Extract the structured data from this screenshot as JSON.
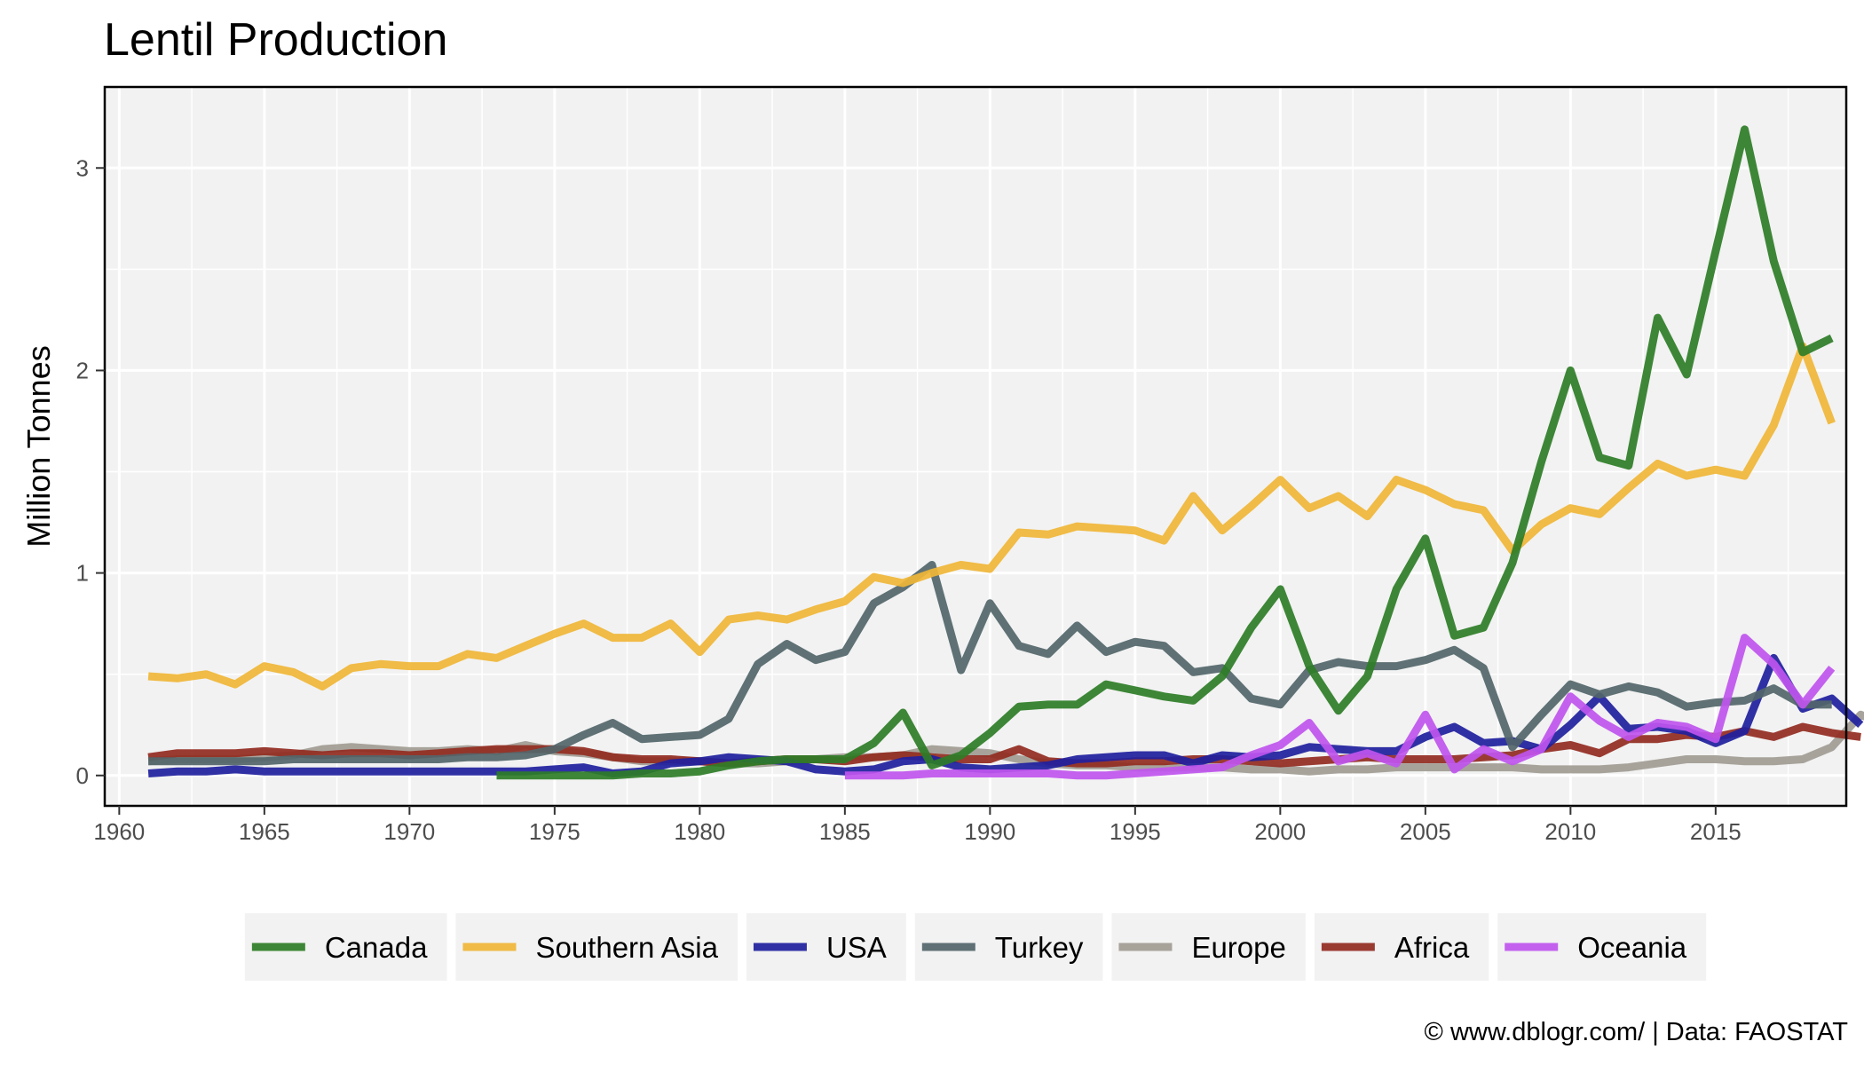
{
  "chart_data": {
    "type": "line",
    "title": "Lentil Production",
    "ylabel": "Million Tonnes",
    "xlabel": "",
    "caption": "© www.dblogr.com/  |  Data: FAOSTAT",
    "xlim": [
      1959.5,
      2019.5
    ],
    "ylim": [
      -0.15,
      3.4
    ],
    "xticks": [
      1960,
      1965,
      1970,
      1975,
      1980,
      1985,
      1990,
      1995,
      2000,
      2005,
      2010,
      2015
    ],
    "xtick_labels": [
      "1960",
      "1965",
      "1970",
      "1975",
      "1980",
      "1985",
      "1990",
      "1995",
      "2000",
      "2005",
      "2010",
      "2015"
    ],
    "yticks": [
      0,
      1,
      2,
      3
    ],
    "ytick_labels": [
      "0",
      "1",
      "2",
      "3"
    ],
    "grid": true,
    "legend_position": "bottom",
    "plot_background": "#f2f2f2",
    "series": [
      {
        "name": "Europe",
        "color": "#a19c94",
        "start": 1961,
        "values": [
          0.07,
          0.08,
          0.08,
          0.08,
          0.09,
          0.1,
          0.13,
          0.14,
          0.13,
          0.12,
          0.12,
          0.13,
          0.12,
          0.15,
          0.12,
          0.11,
          0.09,
          0.07,
          0.07,
          0.07,
          0.06,
          0.06,
          0.07,
          0.08,
          0.09,
          0.09,
          0.1,
          0.13,
          0.12,
          0.11,
          0.08,
          0.06,
          0.05,
          0.05,
          0.04,
          0.04,
          0.04,
          0.04,
          0.03,
          0.03,
          0.02,
          0.03,
          0.03,
          0.04,
          0.04,
          0.04,
          0.04,
          0.04,
          0.03,
          0.03,
          0.03,
          0.04,
          0.06,
          0.08,
          0.08,
          0.07,
          0.07,
          0.08,
          0.14,
          0.3,
          0.24,
          0.12
        ]
      },
      {
        "name": "Africa",
        "color": "#922b21",
        "start": 1961,
        "values": [
          0.09,
          0.11,
          0.11,
          0.11,
          0.12,
          0.11,
          0.1,
          0.11,
          0.11,
          0.1,
          0.11,
          0.12,
          0.13,
          0.13,
          0.13,
          0.12,
          0.09,
          0.08,
          0.08,
          0.07,
          0.06,
          0.07,
          0.08,
          0.08,
          0.07,
          0.09,
          0.1,
          0.09,
          0.08,
          0.08,
          0.13,
          0.07,
          0.06,
          0.06,
          0.07,
          0.07,
          0.08,
          0.08,
          0.07,
          0.06,
          0.07,
          0.08,
          0.09,
          0.08,
          0.08,
          0.08,
          0.09,
          0.1,
          0.13,
          0.15,
          0.11,
          0.18,
          0.18,
          0.2,
          0.19,
          0.22,
          0.19,
          0.24,
          0.21,
          0.19
        ]
      },
      {
        "name": "USA",
        "color": "#1f1f9e",
        "start": 1961,
        "values": [
          0.01,
          0.02,
          0.02,
          0.03,
          0.02,
          0.02,
          0.02,
          0.02,
          0.02,
          0.02,
          0.02,
          0.02,
          0.02,
          0.02,
          0.03,
          0.04,
          0.01,
          0.02,
          0.06,
          0.07,
          0.09,
          0.08,
          0.07,
          0.03,
          0.02,
          0.03,
          0.07,
          0.08,
          0.04,
          0.03,
          0.04,
          0.05,
          0.08,
          0.09,
          0.1,
          0.1,
          0.06,
          0.1,
          0.09,
          0.1,
          0.14,
          0.13,
          0.12,
          0.12,
          0.19,
          0.24,
          0.16,
          0.17,
          0.13,
          0.25,
          0.39,
          0.23,
          0.24,
          0.22,
          0.16,
          0.22,
          0.58,
          0.33,
          0.38,
          0.25
        ]
      },
      {
        "name": "Turkey",
        "color": "#53666a",
        "start": 1961,
        "values": [
          0.07,
          0.07,
          0.07,
          0.07,
          0.07,
          0.08,
          0.08,
          0.08,
          0.08,
          0.08,
          0.08,
          0.09,
          0.09,
          0.1,
          0.13,
          0.2,
          0.26,
          0.18,
          0.19,
          0.2,
          0.28,
          0.55,
          0.65,
          0.57,
          0.61,
          0.85,
          0.93,
          1.04,
          0.52,
          0.85,
          0.64,
          0.6,
          0.74,
          0.61,
          0.66,
          0.64,
          0.51,
          0.53,
          0.38,
          0.35,
          0.52,
          0.56,
          0.54,
          0.54,
          0.57,
          0.62,
          0.53,
          0.14,
          0.3,
          0.45,
          0.4,
          0.44,
          0.41,
          0.34,
          0.36,
          0.37,
          0.43,
          0.35,
          0.35
        ]
      },
      {
        "name": "Oceania",
        "color": "#bf55ee",
        "start": 1985,
        "values": [
          0.0,
          0.0,
          0.0,
          0.01,
          0.01,
          0.01,
          0.01,
          0.01,
          0.0,
          0.0,
          0.01,
          0.02,
          0.03,
          0.04,
          0.1,
          0.15,
          0.26,
          0.07,
          0.11,
          0.06,
          0.3,
          0.03,
          0.13,
          0.07,
          0.13,
          0.39,
          0.27,
          0.19,
          0.26,
          0.24,
          0.18,
          0.68,
          0.55,
          0.35,
          0.53
        ]
      },
      {
        "name": "Southern Asia",
        "color": "#f0b637",
        "start": 1961,
        "values": [
          0.49,
          0.48,
          0.5,
          0.45,
          0.54,
          0.51,
          0.44,
          0.53,
          0.55,
          0.54,
          0.54,
          0.6,
          0.58,
          0.64,
          0.7,
          0.75,
          0.68,
          0.68,
          0.75,
          0.61,
          0.77,
          0.79,
          0.77,
          0.82,
          0.86,
          0.98,
          0.95,
          1.0,
          1.04,
          1.02,
          1.2,
          1.19,
          1.23,
          1.22,
          1.21,
          1.16,
          1.38,
          1.21,
          1.33,
          1.46,
          1.32,
          1.38,
          1.28,
          1.46,
          1.41,
          1.34,
          1.31,
          1.11,
          1.24,
          1.32,
          1.29,
          1.42,
          1.54,
          1.48,
          1.51,
          1.48,
          1.73,
          2.12,
          1.74
        ]
      },
      {
        "name": "Canada",
        "color": "#2e7d27",
        "start": 1973,
        "values": [
          0.0,
          0.0,
          0.0,
          0.0,
          0.0,
          0.01,
          0.01,
          0.02,
          0.05,
          0.07,
          0.08,
          0.08,
          0.08,
          0.16,
          0.31,
          0.05,
          0.1,
          0.21,
          0.34,
          0.35,
          0.35,
          0.45,
          0.42,
          0.39,
          0.37,
          0.49,
          0.73,
          0.92,
          0.54,
          0.32,
          0.49,
          0.92,
          1.17,
          0.69,
          0.73,
          1.05,
          1.55,
          2.0,
          1.57,
          1.53,
          2.26,
          1.98,
          2.59,
          3.19,
          2.54,
          2.09,
          2.16
        ]
      }
    ]
  },
  "legend": {
    "items": [
      {
        "label": "Canada",
        "color": "#2e7d27"
      },
      {
        "label": "Southern Asia",
        "color": "#f0b637"
      },
      {
        "label": "USA",
        "color": "#1f1f9e"
      },
      {
        "label": "Turkey",
        "color": "#53666a"
      },
      {
        "label": "Europe",
        "color": "#a19c94"
      },
      {
        "label": "Africa",
        "color": "#922b21"
      },
      {
        "label": "Oceania",
        "color": "#bf55ee"
      }
    ]
  }
}
